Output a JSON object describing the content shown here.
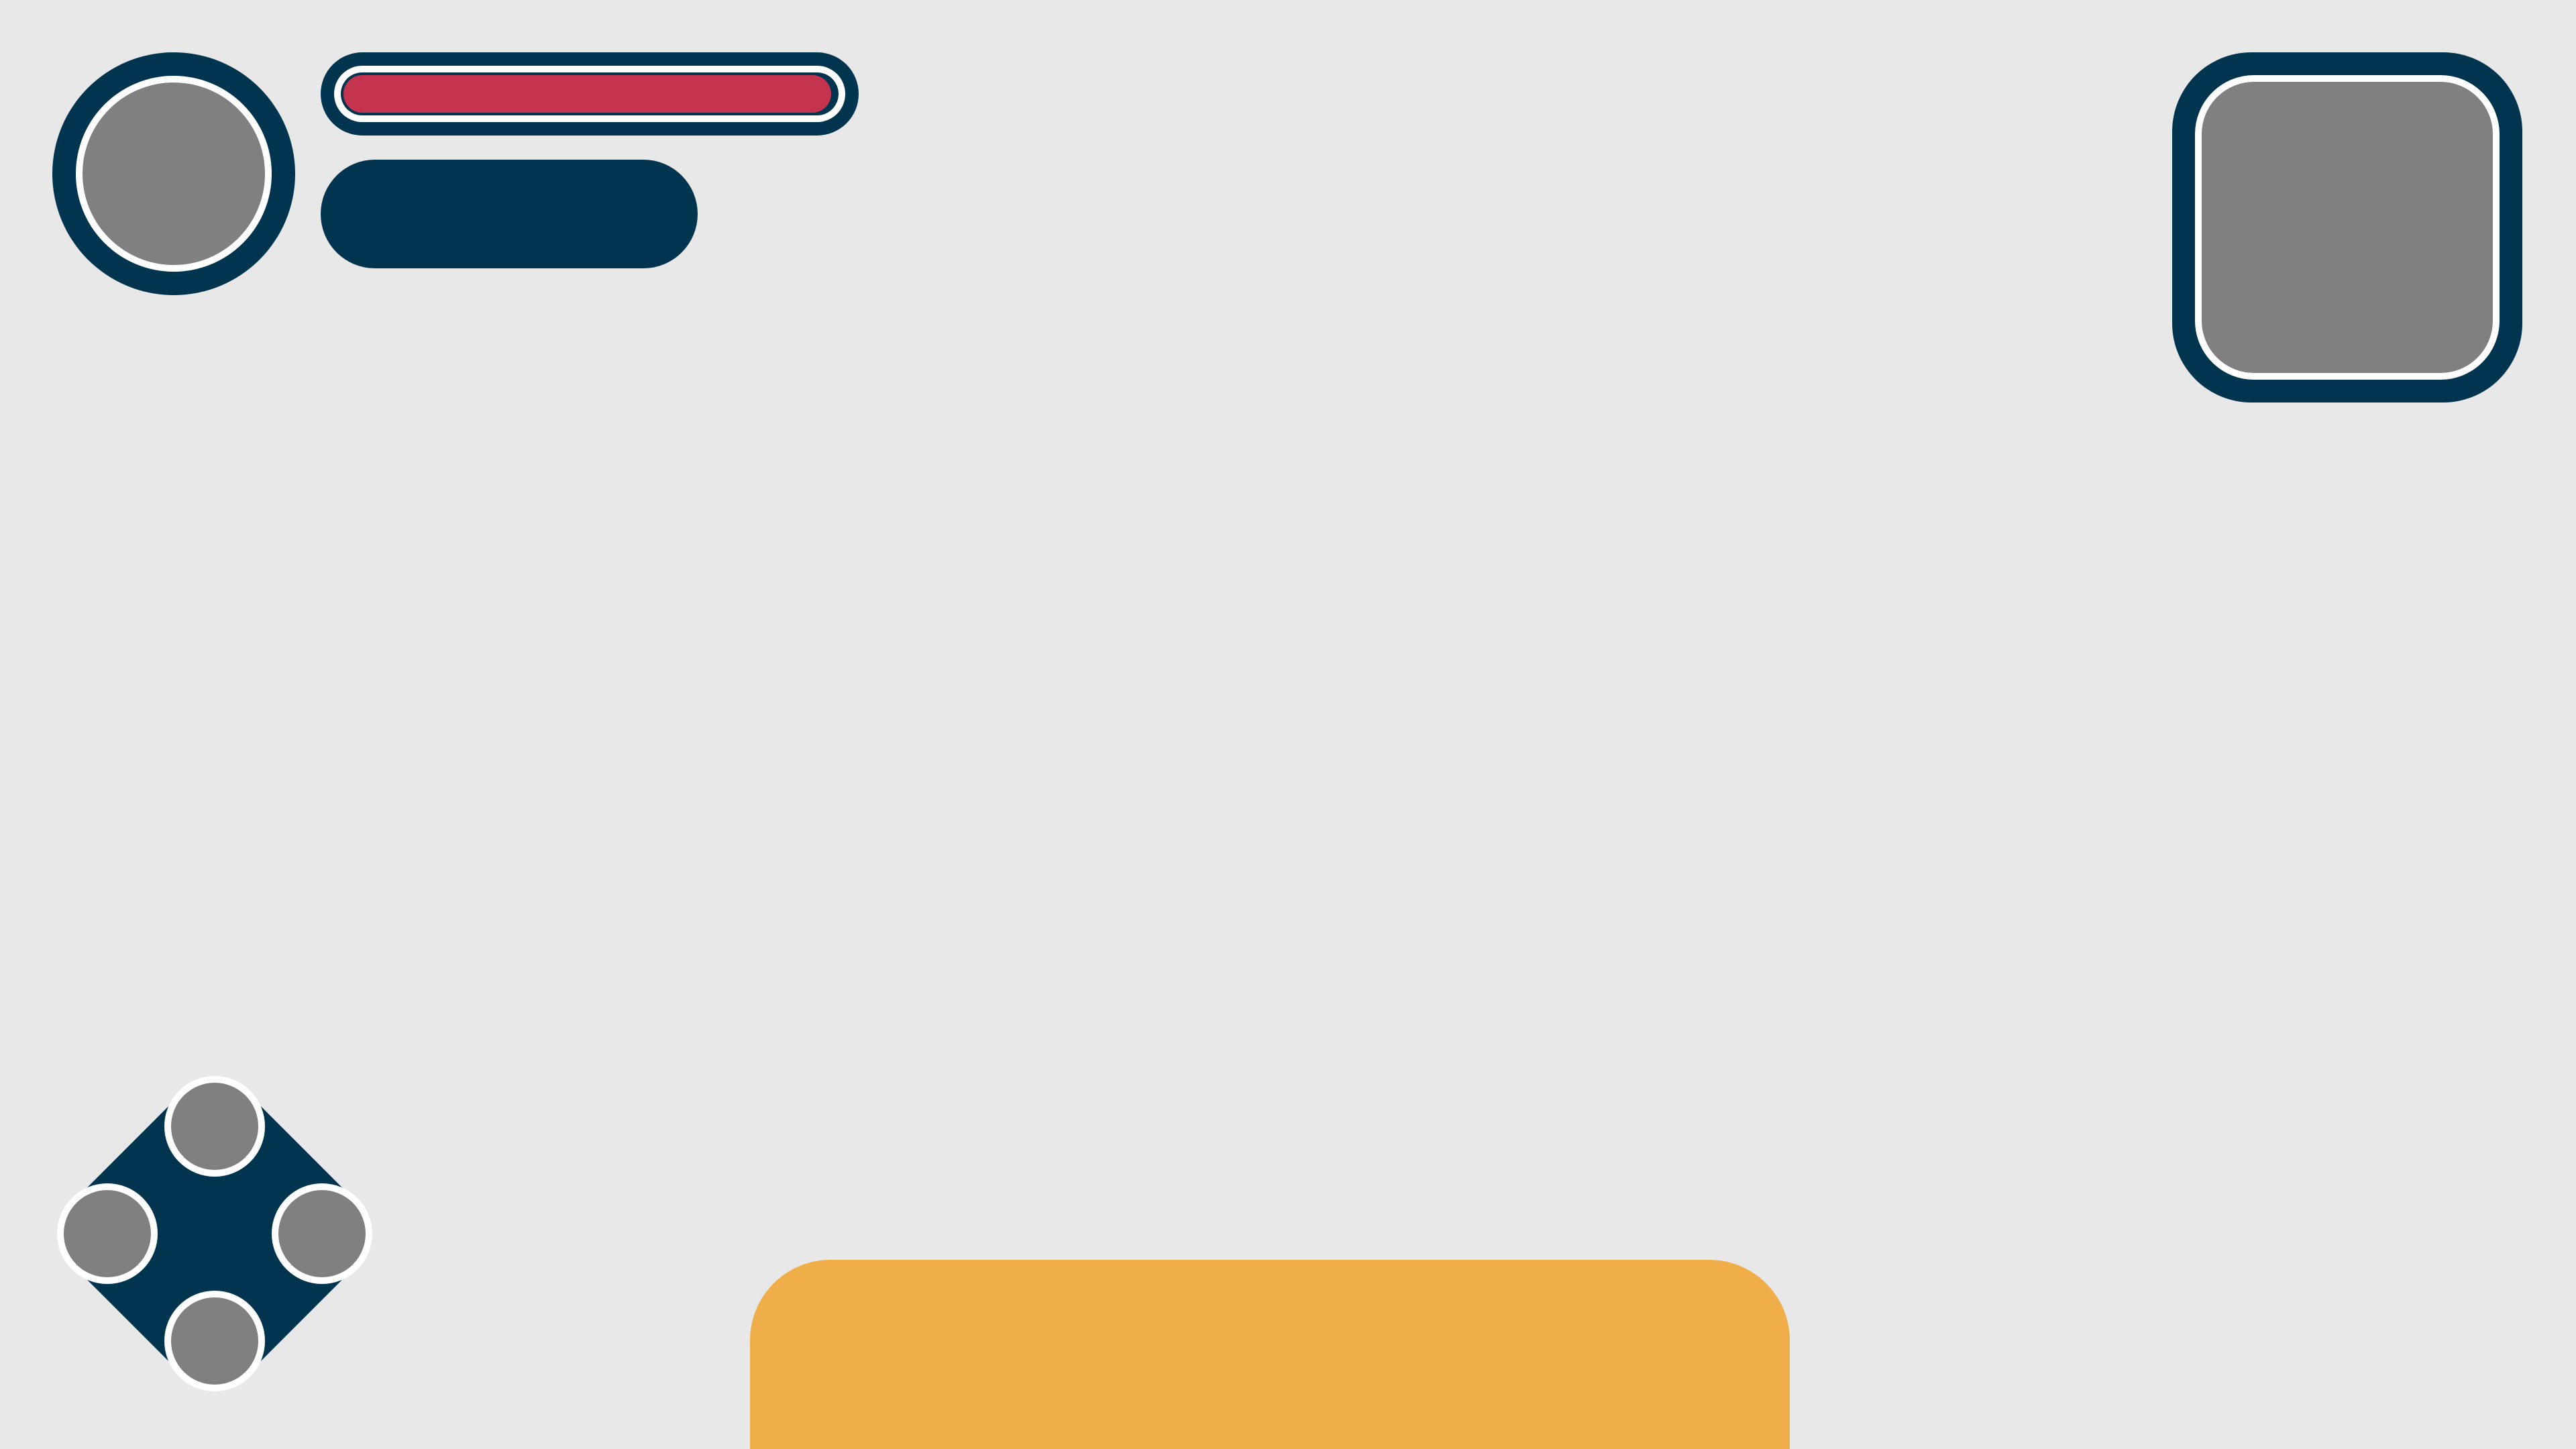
{
  "colors": {
    "background": "#e8e8e8",
    "frame": "#01354f",
    "placeholder": "#808080",
    "outline": "#ffffff",
    "health": "#c4344e",
    "panel": "#f0ae4b"
  },
  "player": {
    "avatar_icon": "portrait-placeholder",
    "health_fraction": 0.99
  },
  "minimap": {
    "icon": "map-placeholder"
  },
  "action_buttons": [
    {
      "name": "action-button-top",
      "icon": "button-placeholder"
    },
    {
      "name": "action-button-left",
      "icon": "button-placeholder"
    },
    {
      "name": "action-button-right",
      "icon": "button-placeholder"
    },
    {
      "name": "action-button-bottom",
      "icon": "button-placeholder"
    }
  ]
}
